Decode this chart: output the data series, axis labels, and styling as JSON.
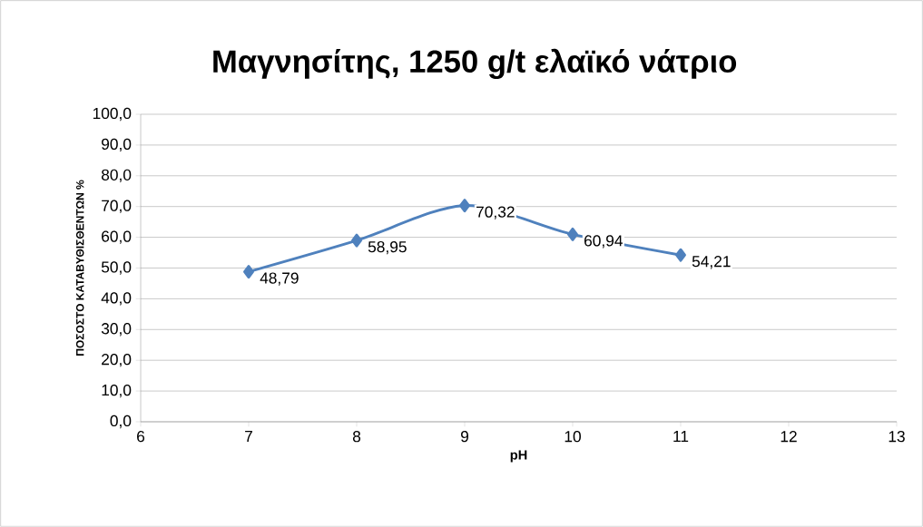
{
  "chart_data": {
    "type": "line",
    "title": "Μαγνησίτης, 1250 g/t ελαϊκό νάτριο",
    "xlabel": "pH",
    "ylabel": "ΠΟΣΟΣΤΟ ΚΑΤΑΒΥΘΙΣΘΕΝΤΩΝ %",
    "x": [
      7,
      8,
      9,
      10,
      11
    ],
    "series": [
      {
        "color": "#4f81bd",
        "values": [
          48.79,
          58.95,
          70.32,
          60.94,
          54.21
        ],
        "value_labels": [
          "48,79",
          "58,95",
          "70,32",
          "60,94",
          "54,21"
        ]
      }
    ],
    "xlim": [
      6,
      13
    ],
    "xticks": [
      6,
      7,
      8,
      9,
      10,
      11,
      12,
      13
    ],
    "ylim": [
      0,
      100
    ],
    "yticks": [
      {
        "value": 0,
        "label": "0,0"
      },
      {
        "value": 10,
        "label": "10,0"
      },
      {
        "value": 20,
        "label": "20,0"
      },
      {
        "value": 30,
        "label": "30,0"
      },
      {
        "value": 40,
        "label": "40,0"
      },
      {
        "value": 50,
        "label": "50,0"
      },
      {
        "value": 60,
        "label": "60,0"
      },
      {
        "value": 70,
        "label": "70,0"
      },
      {
        "value": 80,
        "label": "80,0"
      },
      {
        "value": 90,
        "label": "90,0"
      },
      {
        "value": 100,
        "label": "100,0"
      }
    ],
    "grid": "y",
    "marker": "diamond",
    "line_style": "solid"
  }
}
